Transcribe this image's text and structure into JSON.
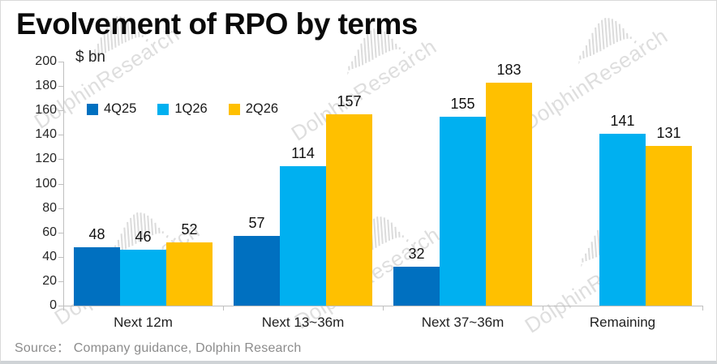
{
  "title": "Evolvement of RPO by terms",
  "source": "Source：  Company guidance, Dolphin Research",
  "watermark": {
    "text": "DolphinResearch"
  },
  "chart_data": {
    "type": "bar",
    "title": "Evolvement of RPO by terms",
    "unit_label": "$ bn",
    "xlabel": "",
    "ylabel": "$ bn",
    "categories": [
      "Next 12m",
      "Next 13~36m",
      "Next 37~36m",
      "Remaining"
    ],
    "series": [
      {
        "name": "4Q25",
        "color": "#0070C0",
        "values": [
          48,
          57,
          32,
          null
        ]
      },
      {
        "name": "1Q26",
        "color": "#00B0F0",
        "values": [
          46,
          114,
          155,
          141
        ]
      },
      {
        "name": "2Q26",
        "color": "#FFC000",
        "values": [
          52,
          157,
          183,
          131
        ]
      }
    ],
    "ylim": [
      0,
      200
    ],
    "ytick_step": 20,
    "grid": false,
    "legend_position": "upper-left-inside",
    "data_labels": true,
    "axis_color": "#bfbfbf",
    "source_text": "Source：  Company guidance, Dolphin Research"
  }
}
